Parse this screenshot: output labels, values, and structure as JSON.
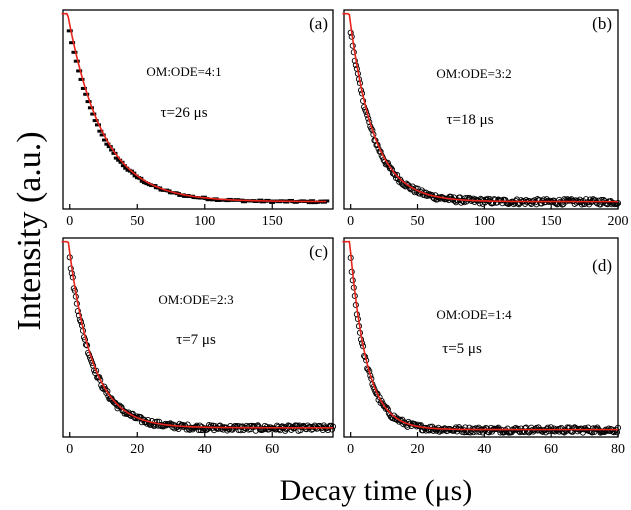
{
  "figure": {
    "ylabel": "Intensity (a.u.)",
    "xlabel": "Decay time (μs)"
  },
  "chart_data": [
    {
      "type": "scatter",
      "panel_label": "(a)",
      "annotation": "OM:ODE=4:1",
      "tau_label": "τ=26 μs",
      "tau": 26,
      "xlim": [
        -5,
        195
      ],
      "ylim": [
        0,
        1.08
      ],
      "xticks": [
        0,
        50,
        100,
        150
      ],
      "marker": "dash",
      "baseline": 0.04,
      "x_max_data": 190,
      "series": [
        {
          "role": "measured",
          "color": "#000000"
        },
        {
          "role": "fit",
          "color": "#e8231b"
        }
      ]
    },
    {
      "type": "scatter",
      "panel_label": "(b)",
      "annotation": "OM:ODE=3:2",
      "tau_label": "τ=18 μs",
      "tau": 18,
      "xlim": [
        -5,
        200
      ],
      "ylim": [
        0,
        1.08
      ],
      "xticks": [
        0,
        50,
        100,
        150,
        200
      ],
      "marker": "circle",
      "baseline": 0.04,
      "x_max_data": 200,
      "series": [
        {
          "role": "measured",
          "color": "#000000"
        },
        {
          "role": "fit",
          "color": "#e8231b"
        }
      ]
    },
    {
      "type": "scatter",
      "panel_label": "(c)",
      "annotation": "OM:ODE=2:3",
      "tau_label": "τ=7 μs",
      "tau": 7,
      "xlim": [
        -2,
        78
      ],
      "ylim": [
        0,
        1.08
      ],
      "xticks": [
        0,
        20,
        40,
        60
      ],
      "marker": "circle",
      "baseline": 0.05,
      "x_max_data": 78,
      "series": [
        {
          "role": "measured",
          "color": "#000000"
        },
        {
          "role": "fit",
          "color": "#e8231b"
        }
      ]
    },
    {
      "type": "scatter",
      "panel_label": "(d)",
      "annotation": "OM:ODE=1:4",
      "tau_label": "τ=5 μs",
      "tau": 5,
      "xlim": [
        -2,
        80
      ],
      "ylim": [
        0,
        1.08
      ],
      "xticks": [
        0,
        20,
        40,
        60,
        80
      ],
      "marker": "circle",
      "baseline": 0.04,
      "x_max_data": 80,
      "series": [
        {
          "role": "measured",
          "color": "#000000"
        },
        {
          "role": "fit",
          "color": "#e8231b"
        }
      ]
    }
  ]
}
